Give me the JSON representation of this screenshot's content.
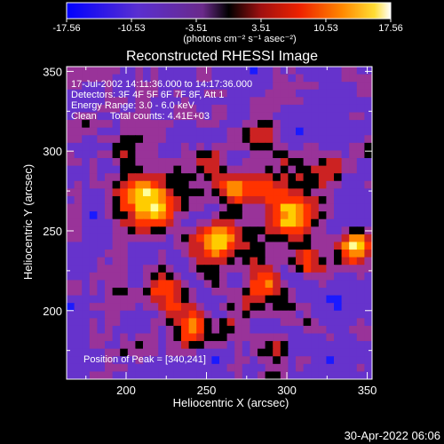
{
  "colorbar": {
    "tick_labels": [
      "-17.56",
      "-10.53",
      "-3.51",
      "3.51",
      "10.53",
      "17.56"
    ],
    "tick_values": [
      -17.56,
      -10.53,
      -3.51,
      3.51,
      10.53,
      17.56
    ],
    "range": [
      -17.56,
      17.56
    ],
    "unit_label": "(photons cm⁻² s⁻¹ asec⁻²)"
  },
  "image": {
    "title": "Reconstructed RHESSI Image",
    "info_lines": [
      "17-Jul-2002 14:11:36.000 to 14:17:36.000",
      "Detectors: 3F 4F 5F 6F 7F 8F, Att 1",
      "Energy Range: 3.0 - 6.0 keV",
      "Clean     Total counts: 4.41E+03"
    ],
    "peak_label": "Position of Peak = [340,241]"
  },
  "axes": {
    "xlabel": "Heliocentric X (arcsec)",
    "ylabel": "Heliocentric Y (arcsec)",
    "xlim": [
      163,
      353
    ],
    "ylim": [
      157,
      353
    ],
    "x_ticks": [
      200,
      250,
      300,
      350
    ],
    "x_tick_labels": [
      "200",
      "250",
      "300",
      "350"
    ],
    "y_ticks": [
      200,
      250,
      300,
      350
    ],
    "y_tick_labels": [
      "200",
      "250",
      "300",
      "350"
    ]
  },
  "colors": {
    "colormap": [
      "#000000",
      "#1a1aff",
      "#6633cc",
      "#993399",
      "#cc2222",
      "#ff3300",
      "#ff8800",
      "#ffcc00",
      "#ffff99",
      "#ffffff"
    ]
  },
  "timestamp": "30-Apr-2022 06:06"
}
